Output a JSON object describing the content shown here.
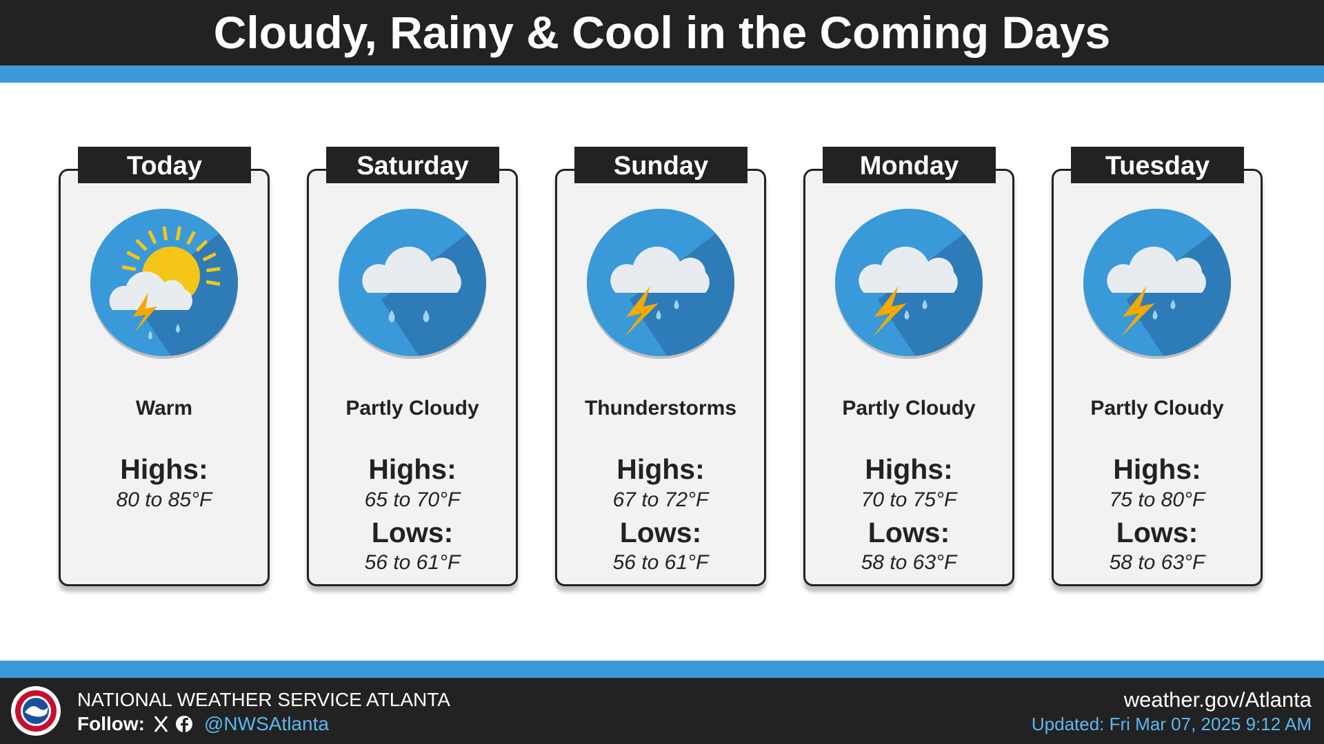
{
  "header": {
    "title": "Cloudy, Rainy & Cool in the Coming Days"
  },
  "days": [
    {
      "name": "Today",
      "condition": "Warm",
      "highs_label": "Highs:",
      "highs": "80 to 85°F"
    },
    {
      "name": "Saturday",
      "condition": "Partly Cloudy",
      "highs_label": "Highs:",
      "highs": "65 to 70°F",
      "lows_label": "Lows:",
      "lows": "56 to 61°F"
    },
    {
      "name": "Sunday",
      "condition": "Thunderstorms",
      "highs_label": "Highs:",
      "highs": "67 to 72°F",
      "lows_label": "Lows:",
      "lows": "56 to 61°F"
    },
    {
      "name": "Monday",
      "condition": "Partly Cloudy",
      "highs_label": "Highs:",
      "highs": "70 to 75°F",
      "lows_label": "Lows:",
      "lows": "58 to 63°F"
    },
    {
      "name": "Tuesday",
      "condition": "Partly Cloudy",
      "highs_label": "Highs:",
      "highs": "75 to 80°F",
      "lows_label": "Lows:",
      "lows": "58 to 63°F"
    }
  ],
  "footer": {
    "office": "NATIONAL WEATHER SERVICE ATLANTA",
    "follow_label": "Follow:",
    "handle": "@NWSAtlanta",
    "website": "weather.gov/Atlanta",
    "updated": "Updated: Fri Mar 07, 2025 9:12 AM"
  }
}
